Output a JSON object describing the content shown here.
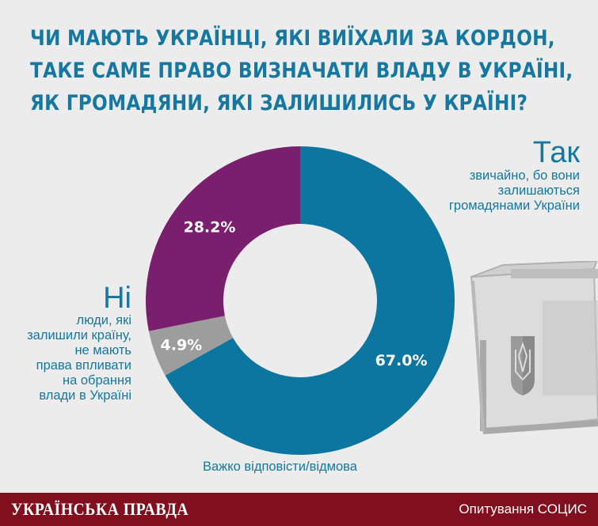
{
  "title_lines": [
    "ЧИ МАЮТЬ УКРАЇНЦІ, ЯКІ ВИЇХАЛИ ЗА КОРДОН,",
    "ТАКЕ САМЕ ПРАВО ВИЗНАЧАТИ ВЛАДУ В УКРАЇНІ,",
    "ЯК ГРОМАДЯНИ, ЯКІ ЗАЛИШИЛИСЬ У КРАЇНІ?"
  ],
  "yes": {
    "word": "Так",
    "description_lines": [
      "звичайно, бо вони",
      "залишаються",
      "громадянами України"
    ]
  },
  "no": {
    "word": "Ні",
    "description_lines": [
      "люди, які",
      "залишили країну,",
      "не мають",
      "права впливати",
      "на обрання",
      "влади в Україні"
    ]
  },
  "hard_to_say": "Важко відповісти/відмова",
  "footer": {
    "brand": "УКРАЇНСЬКА ПРАВДА",
    "source": "Опитування СОЦИС"
  },
  "chart_data": {
    "type": "pie",
    "donut": true,
    "slices": [
      {
        "label": "Так",
        "value": 67.0,
        "value_label": "67.0%",
        "color": "#0d76a0"
      },
      {
        "label": "Важко відповісти/відмова",
        "value": 4.9,
        "value_label": "4.9%",
        "color": "#9d9d9d"
      },
      {
        "label": "Ні",
        "value": 28.2,
        "value_label": "28.2%",
        "color": "#791f6d"
      }
    ]
  },
  "colors": {
    "background": "#ececec",
    "accent": "#1677a0",
    "footer": "#820f1d"
  }
}
